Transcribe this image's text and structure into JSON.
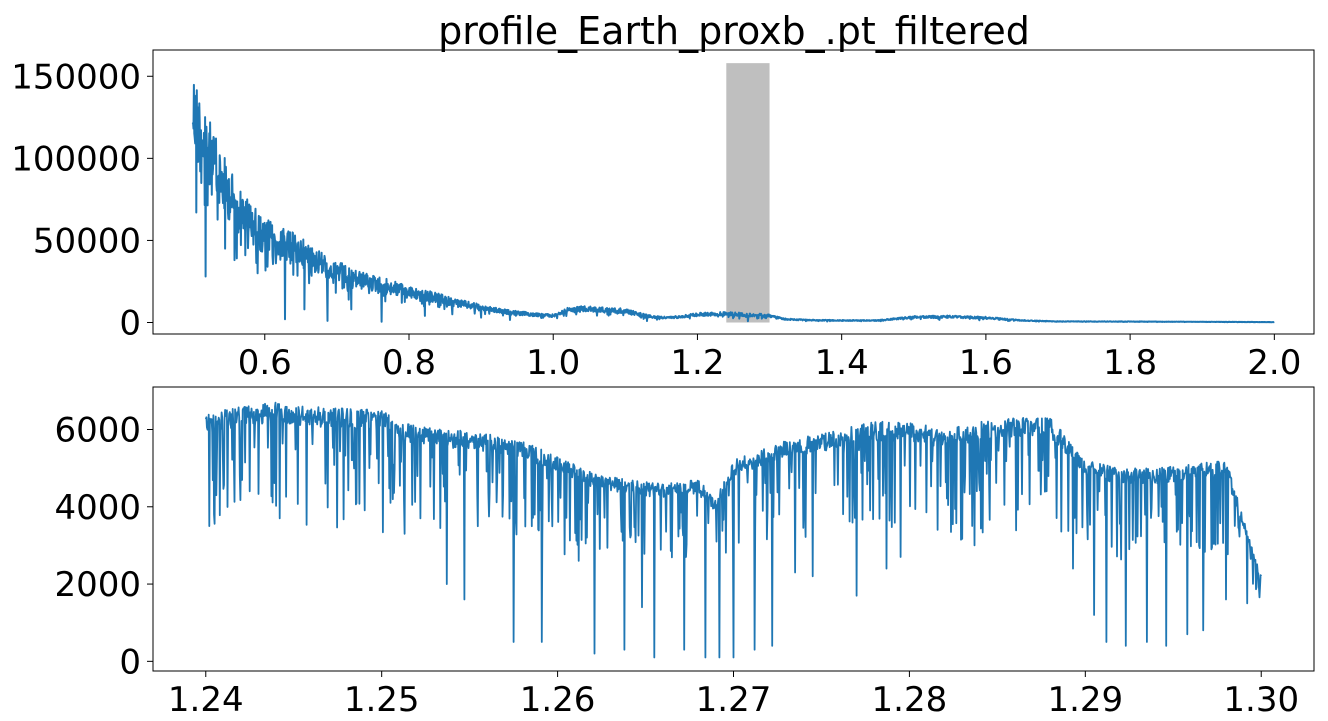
{
  "title": "profile_Earth_proxb_.pt_filtered",
  "chart_data": [
    {
      "type": "line",
      "title": "profile_Earth_proxb_.pt_filtered",
      "xlabel": "",
      "ylabel": "",
      "xlim": [
        0.445,
        2.055
      ],
      "ylim": [
        -7000,
        166000
      ],
      "xticks": [
        0.6,
        0.8,
        1.0,
        1.2,
        1.4,
        1.6,
        1.8,
        2.0
      ],
      "xtick_labels": [
        "0.6",
        "0.8",
        "1.0",
        "1.2",
        "1.4",
        "1.6",
        "1.8",
        "2.0"
      ],
      "yticks": [
        0,
        50000,
        100000,
        150000
      ],
      "ytick_labels": [
        "0",
        "50000",
        "100000",
        "150000"
      ],
      "highlight_band": {
        "x0": 1.24,
        "x1": 1.3,
        "y0": 0,
        "y1": 158000,
        "color": "#bfbfbf"
      },
      "series": [
        {
          "color": "#1f77b4",
          "x": [
            0.5,
            0.51,
            0.52,
            0.53,
            0.54,
            0.55,
            0.56,
            0.58,
            0.6,
            0.62,
            0.64,
            0.66,
            0.68,
            0.7,
            0.72,
            0.74,
            0.76,
            0.78,
            0.8,
            0.82,
            0.84,
            0.86,
            0.88,
            0.9,
            0.92,
            0.94,
            0.96,
            0.98,
            1.0,
            1.02,
            1.04,
            1.06,
            1.08,
            1.1,
            1.12,
            1.14,
            1.16,
            1.18,
            1.2,
            1.22,
            1.24,
            1.26,
            1.28,
            1.3,
            1.32,
            1.35,
            1.4,
            1.45,
            1.5,
            1.55,
            1.6,
            1.65,
            1.7,
            1.8,
            1.9,
            2.0
          ],
          "y": [
            157000,
            140000,
            128000,
            115000,
            104000,
            96000,
            86000,
            74000,
            64000,
            58000,
            55000,
            49000,
            43000,
            38000,
            33000,
            30000,
            28000,
            25000,
            22000,
            20000,
            18000,
            15000,
            13000,
            11000,
            9000,
            7500,
            6500,
            5500,
            5000,
            9000,
            10000,
            9500,
            9000,
            8500,
            6000,
            4000,
            3500,
            4500,
            6000,
            6200,
            6500,
            6000,
            5500,
            5000,
            2500,
            1800,
            1500,
            1500,
            4000,
            4200,
            3500,
            1500,
            800,
            700,
            500,
            300
          ],
          "dips": [
            {
              "x": 0.505,
              "y": 67000
            },
            {
              "x": 0.512,
              "y": 85000
            },
            {
              "x": 0.518,
              "y": 28000
            },
            {
              "x": 0.545,
              "y": 45000
            },
            {
              "x": 0.558,
              "y": 38000
            },
            {
              "x": 0.573,
              "y": 41000
            },
            {
              "x": 0.59,
              "y": 30000
            },
            {
              "x": 0.628,
              "y": 2000
            },
            {
              "x": 0.655,
              "y": 8000
            },
            {
              "x": 0.687,
              "y": 1000
            },
            {
              "x": 0.72,
              "y": 8000
            },
            {
              "x": 0.762,
              "y": 500
            },
            {
              "x": 0.79,
              "y": 12000
            },
            {
              "x": 0.822,
              "y": 4000
            },
            {
              "x": 0.86,
              "y": 5000
            },
            {
              "x": 0.9,
              "y": 3000
            },
            {
              "x": 0.94,
              "y": 1500
            },
            {
              "x": 1.13,
              "y": 900
            },
            {
              "x": 1.27,
              "y": 800
            },
            {
              "x": 1.38,
              "y": 600
            }
          ]
        }
      ]
    },
    {
      "type": "line",
      "title": "",
      "xlabel": "",
      "ylabel": "",
      "xlim": [
        1.237,
        1.303
      ],
      "ylim": [
        -250,
        7100
      ],
      "xticks": [
        1.24,
        1.25,
        1.26,
        1.27,
        1.28,
        1.29,
        1.3
      ],
      "xtick_labels": [
        "1.24",
        "1.25",
        "1.26",
        "1.27",
        "1.28",
        "1.29",
        "1.30"
      ],
      "yticks": [
        0,
        2000,
        4000,
        6000
      ],
      "ytick_labels": [
        "0",
        "2000",
        "4000",
        "6000"
      ],
      "series": [
        {
          "color": "#1f77b4",
          "x": [
            1.24,
            1.242,
            1.244,
            1.246,
            1.248,
            1.25,
            1.251,
            1.252,
            1.254,
            1.256,
            1.258,
            1.26,
            1.262,
            1.264,
            1.266,
            1.268,
            1.269,
            1.27,
            1.272,
            1.274,
            1.276,
            1.278,
            1.28,
            1.282,
            1.284,
            1.286,
            1.288,
            1.289,
            1.29,
            1.292,
            1.294,
            1.296,
            1.298,
            1.3
          ],
          "y": [
            6400,
            6600,
            6700,
            6600,
            6550,
            6500,
            6200,
            6100,
            6000,
            5900,
            5700,
            5300,
            4900,
            4700,
            4600,
            4700,
            4200,
            5200,
            5600,
            5800,
            6000,
            6200,
            6200,
            6000,
            6200,
            6300,
            6300,
            5800,
            5200,
            5000,
            5000,
            5100,
            5200,
            2200
          ],
          "dips": [
            {
              "x": 1.2402,
              "y": 3500
            },
            {
              "x": 1.2406,
              "y": 4300
            },
            {
              "x": 1.2425,
              "y": 4400
            },
            {
              "x": 1.2442,
              "y": 3700
            },
            {
              "x": 1.2468,
              "y": 4600
            },
            {
              "x": 1.2493,
              "y": 5000
            },
            {
              "x": 1.2505,
              "y": 4100
            },
            {
              "x": 1.2513,
              "y": 3300
            },
            {
              "x": 1.2522,
              "y": 3700
            },
            {
              "x": 1.2537,
              "y": 2000
            },
            {
              "x": 1.2547,
              "y": 1600
            },
            {
              "x": 1.2575,
              "y": 500
            },
            {
              "x": 1.2591,
              "y": 500
            },
            {
              "x": 1.2612,
              "y": 2600
            },
            {
              "x": 1.2621,
              "y": 200
            },
            {
              "x": 1.2638,
              "y": 300
            },
            {
              "x": 1.2648,
              "y": 1400
            },
            {
              "x": 1.2655,
              "y": 100
            },
            {
              "x": 1.2672,
              "y": 300
            },
            {
              "x": 1.2684,
              "y": 100
            },
            {
              "x": 1.2692,
              "y": 100
            },
            {
              "x": 1.27,
              "y": 100
            },
            {
              "x": 1.2712,
              "y": 300
            },
            {
              "x": 1.2722,
              "y": 400
            },
            {
              "x": 1.2735,
              "y": 2300
            },
            {
              "x": 1.2745,
              "y": 2200
            },
            {
              "x": 1.277,
              "y": 1700
            },
            {
              "x": 1.2787,
              "y": 2400
            },
            {
              "x": 1.2795,
              "y": 2700
            },
            {
              "x": 1.2837,
              "y": 3000
            },
            {
              "x": 1.2878,
              "y": 4400
            },
            {
              "x": 1.2893,
              "y": 2400
            },
            {
              "x": 1.2905,
              "y": 1200
            },
            {
              "x": 1.2912,
              "y": 500
            },
            {
              "x": 1.2923,
              "y": 400
            },
            {
              "x": 1.2935,
              "y": 500
            },
            {
              "x": 1.2946,
              "y": 400
            },
            {
              "x": 1.2958,
              "y": 700
            },
            {
              "x": 1.2967,
              "y": 800
            },
            {
              "x": 1.298,
              "y": 1600
            },
            {
              "x": 1.2992,
              "y": 1500
            },
            {
              "x": 1.3,
              "y": 2200
            }
          ]
        }
      ]
    }
  ]
}
